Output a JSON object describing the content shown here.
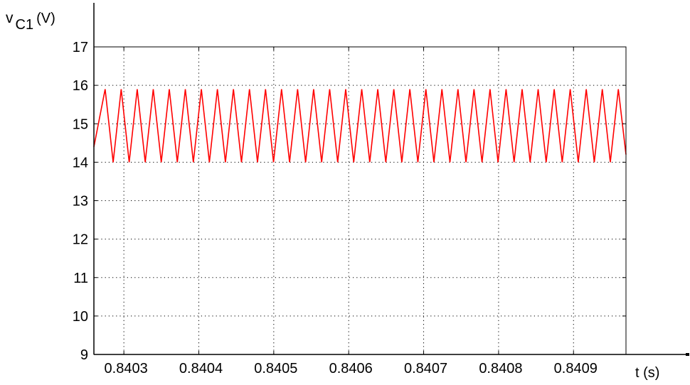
{
  "chart_data": {
    "type": "line",
    "title": "",
    "ylabel": {
      "symbol": "v",
      "subscript": "C1",
      "unit": "(V)"
    },
    "xlabel": "t (s)",
    "xlim": [
      0.84026,
      0.84097
    ],
    "ylim": [
      9,
      17
    ],
    "yticks": [
      9,
      10,
      11,
      12,
      13,
      14,
      15,
      16,
      17
    ],
    "xticks": [
      0.8403,
      0.8404,
      0.8405,
      0.8406,
      0.8407,
      0.8408,
      0.8409
    ],
    "xtick_labels": [
      "0.8403",
      "0.8404",
      "0.8405",
      "0.8406",
      "0.8407",
      "0.8408",
      "0.8409"
    ],
    "grid": true,
    "series": [
      {
        "color": "#ff0000",
        "waveform": "triangular",
        "min": 14.0,
        "max": 15.9,
        "period": 2.14e-05,
        "t_first_peak": 0.840275,
        "t_first_trough": 0.840285,
        "y_start": 14.4,
        "y_end": 14.2
      }
    ]
  }
}
